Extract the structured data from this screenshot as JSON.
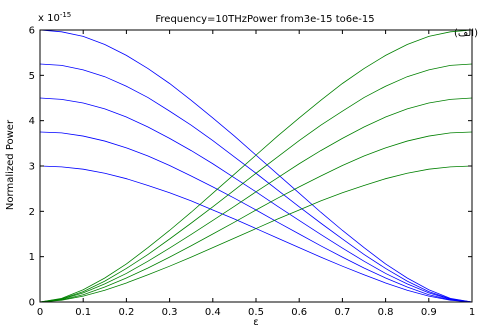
{
  "chart_data": {
    "type": "line",
    "title": "Frequency=10THzPower from3e-15  to6e-15",
    "annotation": "(الف)",
    "xlabel": "ε",
    "ylabel": "Normalized Power",
    "y_exponent_label": "x 10",
    "y_exponent_power": "-15",
    "xlim": [
      0,
      1
    ],
    "ylim": [
      0,
      6
    ],
    "x_ticks": [
      0,
      0.1,
      0.2,
      0.3,
      0.4,
      0.5,
      0.6,
      0.7,
      0.8,
      0.9,
      1
    ],
    "x_tick_labels": [
      "0",
      "0.1",
      "0.2",
      "0.3",
      "0.4",
      "0.5",
      "0.6",
      "0.7",
      "0.8",
      "0.9",
      "1"
    ],
    "y_ticks": [
      0,
      1,
      2,
      3,
      4,
      5,
      6
    ],
    "y_tick_labels": [
      "0",
      "1",
      "2",
      "3",
      "4",
      "5",
      "6"
    ],
    "grid": false,
    "x": [
      0,
      0.05,
      0.1,
      0.15,
      0.2,
      0.25,
      0.3,
      0.35,
      0.4,
      0.45,
      0.5,
      0.55,
      0.6,
      0.65,
      0.7,
      0.75,
      0.8,
      0.85,
      0.9,
      0.95,
      1
    ],
    "colors": {
      "decreasing": "#0000ff",
      "increasing": "#008000"
    },
    "series": [
      {
        "group": "decreasing",
        "values": [
          3.0,
          2.98,
          2.93,
          2.84,
          2.72,
          2.57,
          2.41,
          2.23,
          2.03,
          1.83,
          1.62,
          1.41,
          1.2,
          0.99,
          0.79,
          0.6,
          0.42,
          0.26,
          0.13,
          0.04,
          0.0
        ]
      },
      {
        "group": "decreasing",
        "values": [
          3.75,
          3.73,
          3.66,
          3.55,
          3.4,
          3.22,
          3.01,
          2.78,
          2.54,
          2.29,
          2.03,
          1.76,
          1.5,
          1.24,
          0.99,
          0.75,
          0.53,
          0.33,
          0.16,
          0.05,
          0.0
        ]
      },
      {
        "group": "decreasing",
        "values": [
          4.5,
          4.47,
          4.39,
          4.26,
          4.08,
          3.86,
          3.61,
          3.34,
          3.05,
          2.74,
          2.43,
          2.11,
          1.8,
          1.49,
          1.19,
          0.9,
          0.63,
          0.4,
          0.2,
          0.06,
          0.0
        ]
      },
      {
        "group": "decreasing",
        "values": [
          5.25,
          5.22,
          5.12,
          4.97,
          4.76,
          4.51,
          4.21,
          3.9,
          3.56,
          3.2,
          2.84,
          2.47,
          2.1,
          1.74,
          1.39,
          1.05,
          0.74,
          0.46,
          0.23,
          0.07,
          0.0
        ]
      },
      {
        "group": "decreasing",
        "values": [
          6.0,
          5.96,
          5.86,
          5.68,
          5.44,
          5.15,
          4.82,
          4.45,
          4.06,
          3.66,
          3.24,
          2.82,
          2.4,
          1.98,
          1.58,
          1.2,
          0.84,
          0.53,
          0.27,
          0.08,
          0.0
        ]
      },
      {
        "group": "increasing",
        "values": [
          0.0,
          0.04,
          0.13,
          0.26,
          0.42,
          0.6,
          0.79,
          0.99,
          1.2,
          1.41,
          1.62,
          1.83,
          2.03,
          2.23,
          2.41,
          2.57,
          2.72,
          2.84,
          2.93,
          2.98,
          3.0
        ]
      },
      {
        "group": "increasing",
        "values": [
          0.0,
          0.05,
          0.16,
          0.33,
          0.53,
          0.75,
          0.99,
          1.24,
          1.5,
          1.76,
          2.03,
          2.29,
          2.54,
          2.78,
          3.01,
          3.22,
          3.4,
          3.55,
          3.66,
          3.73,
          3.75
        ]
      },
      {
        "group": "increasing",
        "values": [
          0.0,
          0.06,
          0.2,
          0.4,
          0.63,
          0.9,
          1.19,
          1.49,
          1.8,
          2.11,
          2.43,
          2.74,
          3.05,
          3.34,
          3.61,
          3.86,
          4.08,
          4.26,
          4.39,
          4.47,
          4.5
        ]
      },
      {
        "group": "increasing",
        "values": [
          0.0,
          0.07,
          0.23,
          0.46,
          0.74,
          1.05,
          1.39,
          1.74,
          2.1,
          2.47,
          2.84,
          3.2,
          3.56,
          3.9,
          4.21,
          4.51,
          4.76,
          4.97,
          5.12,
          5.22,
          5.25
        ]
      },
      {
        "group": "increasing",
        "values": [
          0.0,
          0.08,
          0.27,
          0.53,
          0.84,
          1.2,
          1.58,
          1.98,
          2.4,
          2.82,
          3.24,
          3.66,
          4.06,
          4.45,
          4.82,
          5.15,
          5.44,
          5.68,
          5.86,
          5.96,
          6.0
        ]
      }
    ]
  }
}
